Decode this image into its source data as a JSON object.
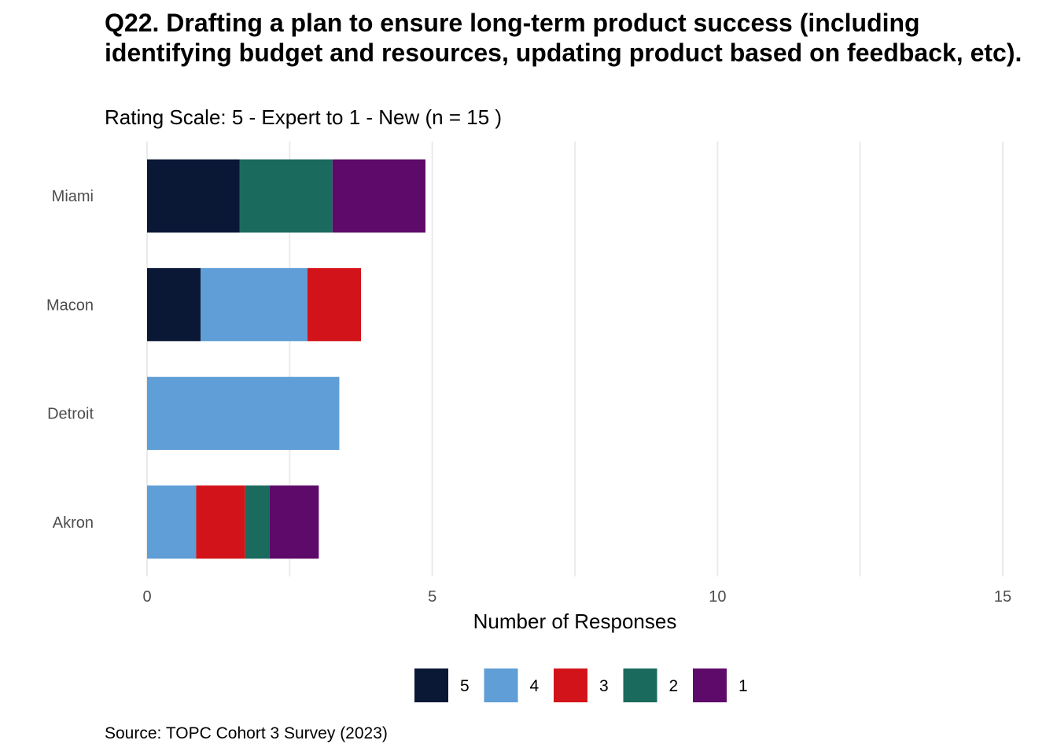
{
  "chart_data": {
    "type": "bar",
    "orientation": "horizontal",
    "stacked": true,
    "title": "Q22. Drafting a plan to ensure long-term product success (including identifying budget and resources, updating product based on feedback, etc).",
    "subtitle": "Rating Scale: 5 - Expert to 1 - New (n = 15 )",
    "caption": "Source: TOPC Cohort 3 Survey (2023)",
    "xlabel": "Number of Responses",
    "ylabel": "",
    "xlim": [
      0,
      15
    ],
    "xticks": [
      "0",
      "5",
      "10",
      "15"
    ],
    "grid": true,
    "legend_position": "bottom",
    "categories": [
      "Miami",
      "Macon",
      "Detroit",
      "Akron"
    ],
    "series": [
      {
        "name": "5",
        "color": "#0a1836",
        "values": [
          1.62,
          0.94,
          0,
          0
        ]
      },
      {
        "name": "4",
        "color": "#5f9ed6",
        "values": [
          0,
          1.87,
          3.37,
          0.86
        ]
      },
      {
        "name": "3",
        "color": "#d2141a",
        "values": [
          0,
          0.94,
          0,
          0.86
        ]
      },
      {
        "name": "2",
        "color": "#1a6a5e",
        "values": [
          1.63,
          0,
          0,
          0.43
        ]
      },
      {
        "name": "1",
        "color": "#5e0a6a",
        "values": [
          1.63,
          0,
          0,
          0.86
        ]
      }
    ]
  }
}
